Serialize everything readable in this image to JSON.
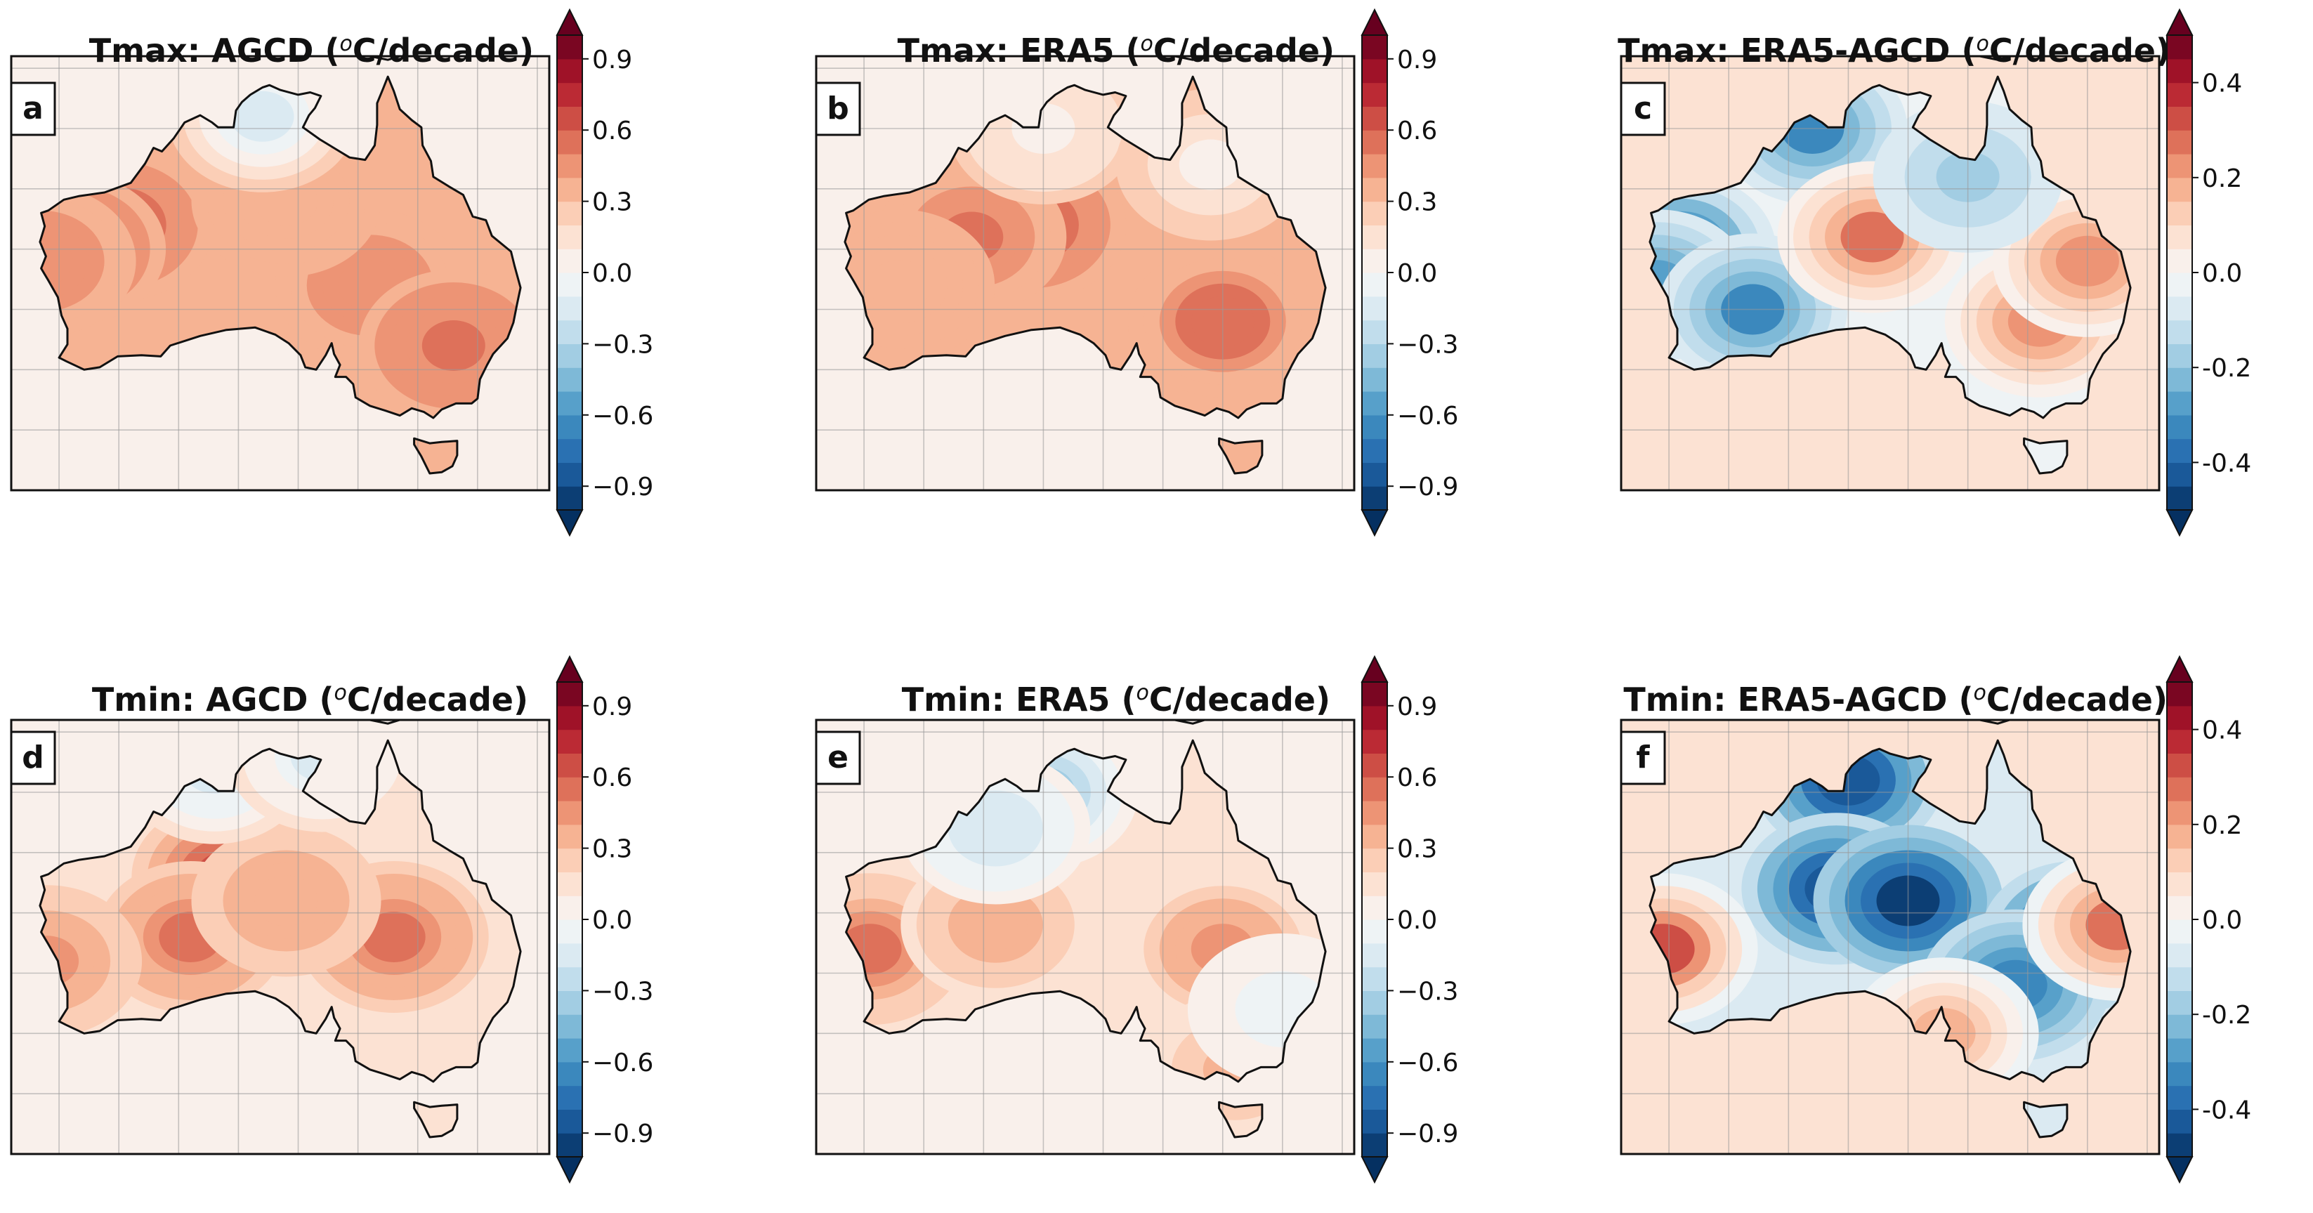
{
  "figure": {
    "panels": [
      {
        "label": "a",
        "title_pre": "Tmax: AGCD (",
        "unit_sup": "o",
        "unit_post": "C/decade)",
        "pattern": "agcd_max",
        "cbar": "c09"
      },
      {
        "label": "b",
        "title_pre": "Tmax: ERA5 (",
        "unit_sup": "o",
        "unit_post": "C/decade)",
        "pattern": "era5_max",
        "cbar": "c09"
      },
      {
        "label": "c",
        "title_pre": "Tmax: ERA5-AGCD (",
        "unit_sup": "o",
        "unit_post": "C/decade)",
        "pattern": "diff_max",
        "cbar": "c04"
      },
      {
        "label": "d",
        "title_pre": "Tmin: AGCD (",
        "unit_sup": "o",
        "unit_post": "C/decade)",
        "pattern": "agcd_min",
        "cbar": "c09"
      },
      {
        "label": "e",
        "title_pre": "Tmin: ERA5 (",
        "unit_sup": "o",
        "unit_post": "C/decade)",
        "pattern": "era5_min",
        "cbar": "c09"
      },
      {
        "label": "f",
        "title_pre": "Tmin: ERA5-AGCD (",
        "unit_sup": "o",
        "unit_post": "C/decade)",
        "pattern": "diff_min",
        "cbar": "c04"
      }
    ],
    "colorbars": {
      "c09": {
        "min": -1.0,
        "max": 1.0,
        "step": 0.1,
        "ticks": [
          -0.9,
          -0.6,
          -0.3,
          0.0,
          0.3,
          0.6,
          0.9
        ],
        "tick_labels": [
          "−0.9",
          "−0.6",
          "−0.3",
          "0.0",
          "0.3",
          "0.6",
          "0.9"
        ]
      },
      "c04": {
        "min": -0.5,
        "max": 0.5,
        "step": 0.05,
        "ticks": [
          -0.4,
          -0.2,
          0.0,
          0.2,
          0.4
        ],
        "tick_labels": [
          "-0.4",
          "-0.2",
          "0.0",
          "0.2",
          "0.4"
        ]
      }
    },
    "colormap": {
      "name": "RdBu_r",
      "colors": [
        "#053061",
        "#2166ac",
        "#4393c3",
        "#92c5de",
        "#d1e5f0",
        "#f7f7f7",
        "#fddbc7",
        "#f4a582",
        "#d6604d",
        "#b2182b",
        "#67001f"
      ]
    },
    "spatial_trends": {
      "agcd_max": {
        "background": 0.06,
        "land_base": 0.34,
        "hotspots": [
          {
            "lon": 120,
            "lat": -23,
            "value": 0.6
          },
          {
            "lon": 116,
            "lat": -25,
            "value": 0.5
          },
          {
            "lon": 141,
            "lat": -28,
            "value": 0.45
          },
          {
            "lon": 148,
            "lat": -33,
            "value": 0.5
          },
          {
            "lon": 134,
            "lat": -21,
            "value": 0.38
          },
          {
            "lon": 113.5,
            "lat": -26,
            "value": 0.45
          },
          {
            "lon": 132,
            "lat": -14,
            "value": -0.12
          }
        ]
      },
      "era5_max": {
        "background": 0.06,
        "land_base": 0.3,
        "hotspots": [
          {
            "lon": 129,
            "lat": -23,
            "value": 0.6
          },
          {
            "lon": 124,
            "lat": -24,
            "value": 0.5
          },
          {
            "lon": 145,
            "lat": -31,
            "value": 0.55
          },
          {
            "lon": 118,
            "lat": -28,
            "value": 0.38
          },
          {
            "lon": 130,
            "lat": -15,
            "value": 0.05
          },
          {
            "lon": 144,
            "lat": -18,
            "value": 0.08
          }
        ]
      },
      "diff_max": {
        "background": 0.05,
        "land_base": -0.03,
        "hotspots": [
          {
            "lon": 116,
            "lat": -25,
            "value": -0.32
          },
          {
            "lon": 114,
            "lat": -28,
            "value": -0.28
          },
          {
            "lon": 122,
            "lat": -30,
            "value": -0.3
          },
          {
            "lon": 127,
            "lat": -15,
            "value": -0.3
          },
          {
            "lon": 132,
            "lat": -24,
            "value": 0.25
          },
          {
            "lon": 146,
            "lat": -31,
            "value": 0.22
          },
          {
            "lon": 150,
            "lat": -26,
            "value": 0.22
          },
          {
            "lon": 140,
            "lat": -19,
            "value": -0.15
          }
        ]
      },
      "agcd_min": {
        "background": 0.06,
        "land_base": 0.18,
        "hotspots": [
          {
            "lon": 129,
            "lat": -22,
            "value": 0.65
          },
          {
            "lon": 126,
            "lat": -27,
            "value": 0.5
          },
          {
            "lon": 143,
            "lat": -27,
            "value": 0.5
          },
          {
            "lon": 134,
            "lat": -24,
            "value": 0.4
          },
          {
            "lon": 114,
            "lat": -29,
            "value": 0.45
          },
          {
            "lon": 128,
            "lat": -13,
            "value": -0.15
          },
          {
            "lon": 137,
            "lat": -12,
            "value": -0.12
          }
        ]
      },
      "era5_min": {
        "background": 0.06,
        "land_base": 0.12,
        "hotspots": [
          {
            "lon": 115.5,
            "lat": -28,
            "value": 0.55
          },
          {
            "lon": 126,
            "lat": -26,
            "value": 0.4
          },
          {
            "lon": 145,
            "lat": -28,
            "value": 0.45
          },
          {
            "lon": 130,
            "lat": -15,
            "value": -0.3
          },
          {
            "lon": 126,
            "lat": -18,
            "value": -0.2
          },
          {
            "lon": 146,
            "lat": -38,
            "value": 0.3
          },
          {
            "lon": 150,
            "lat": -33,
            "value": -0.05
          }
        ]
      },
      "diff_min": {
        "background": 0.05,
        "land_base": -0.08,
        "hotspots": [
          {
            "lon": 130,
            "lat": -14,
            "value": -0.42
          },
          {
            "lon": 129,
            "lat": -23,
            "value": -0.42
          },
          {
            "lon": 135,
            "lat": -24,
            "value": -0.45
          },
          {
            "lon": 149,
            "lat": -27,
            "value": -0.4
          },
          {
            "lon": 144,
            "lat": -31,
            "value": -0.32
          },
          {
            "lon": 114.5,
            "lat": -28,
            "value": 0.3
          },
          {
            "lon": 152.5,
            "lat": -26,
            "value": 0.25
          },
          {
            "lon": 138,
            "lat": -35,
            "value": 0.2
          }
        ]
      }
    }
  }
}
